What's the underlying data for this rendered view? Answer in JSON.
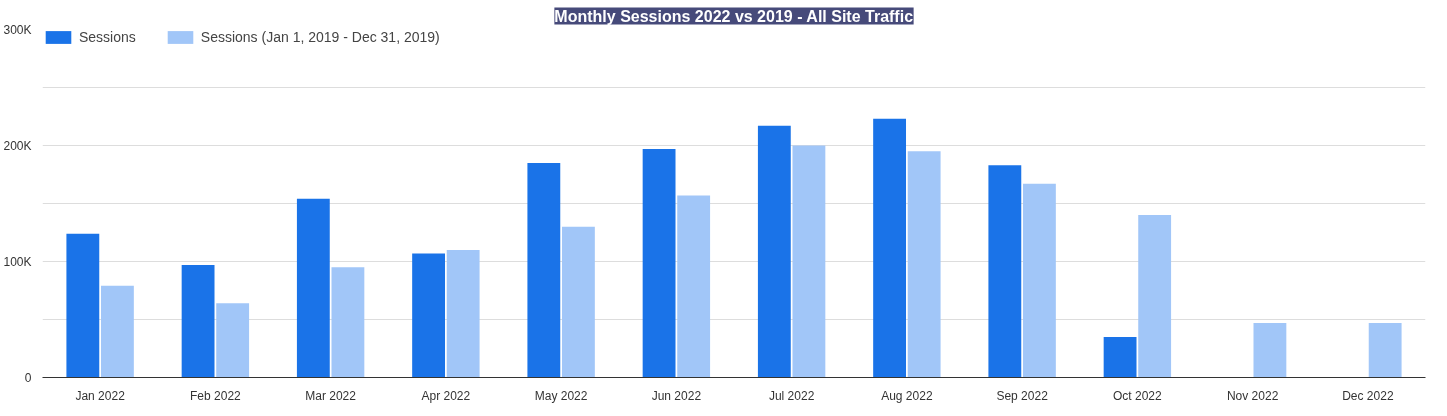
{
  "chart_data": {
    "type": "bar",
    "title": "Monthly Sessions 2022 vs 2019 - All Site Traffic",
    "categories": [
      "Jan 2022",
      "Feb 2022",
      "Mar 2022",
      "Apr 2022",
      "May 2022",
      "Jun 2022",
      "Jul 2022",
      "Aug 2022",
      "Sep 2022",
      "Oct 2022",
      "Nov 2022",
      "Dec 2022"
    ],
    "series": [
      {
        "name": "Sessions",
        "color": "#1a73e8",
        "values": [
          124000,
          97000,
          154000,
          107000,
          185000,
          197000,
          217000,
          223000,
          183000,
          35000,
          null,
          null
        ]
      },
      {
        "name": "Sessions (Jan 1, 2019 - Dec 31, 2019)",
        "color": "#a1c6f8",
        "values": [
          79000,
          64000,
          95000,
          110000,
          130000,
          157000,
          200000,
          195000,
          167000,
          140000,
          47000,
          47000
        ]
      }
    ],
    "ylim": [
      0,
      300000
    ],
    "yticks": [
      0,
      {
        "value": 50000,
        "label": null
      },
      {
        "value": 100000,
        "label": "100K"
      },
      {
        "value": 150000,
        "label": null
      },
      {
        "value": 200000,
        "label": "200K"
      },
      {
        "value": 250000,
        "label": null
      },
      {
        "value": 300000,
        "label": "300K"
      }
    ],
    "grid": "y",
    "legend": "top left"
  }
}
